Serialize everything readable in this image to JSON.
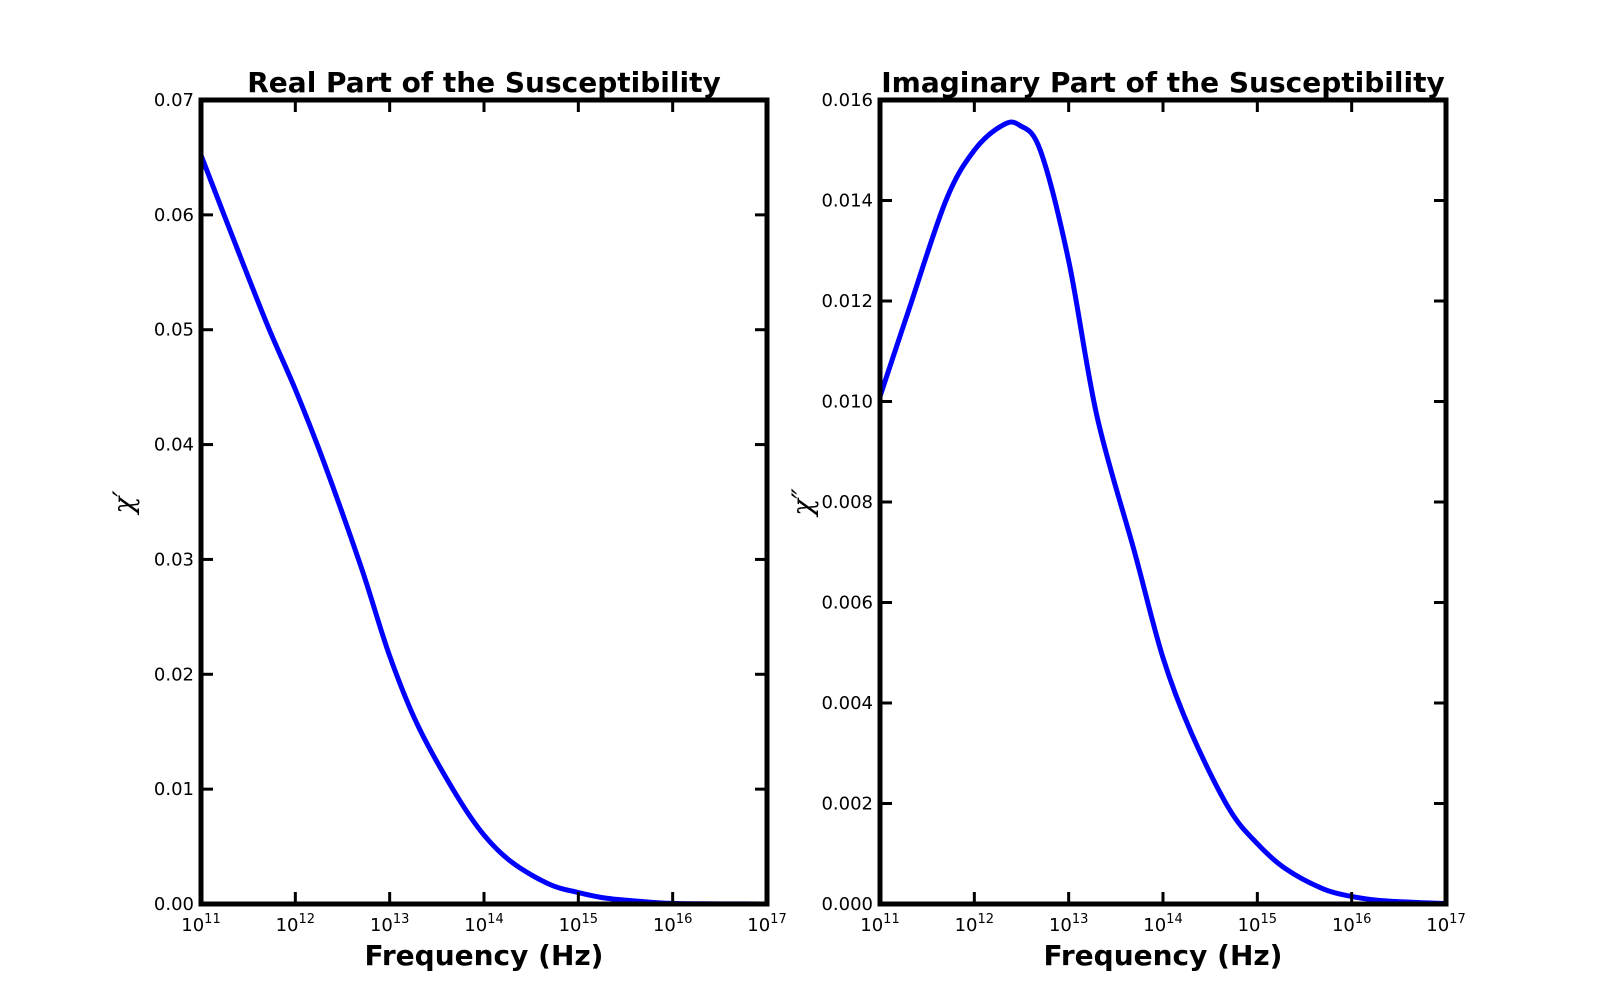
{
  "figure": {
    "background": "#ffffff",
    "line_color": "#0000ff",
    "frame_color": "#000000"
  },
  "chart_data": [
    {
      "type": "line",
      "title": "Real Part of the Susceptibility",
      "xlabel": "Frequency (Hz)",
      "ylabel": "χ′",
      "xscale": "log",
      "xlim": [
        100000000000.0,
        1e+17
      ],
      "ylim": [
        0,
        0.07
      ],
      "xticks": [
        {
          "value": 100000000000.0,
          "base": "10",
          "exp": "11"
        },
        {
          "value": 1000000000000.0,
          "base": "10",
          "exp": "12"
        },
        {
          "value": 10000000000000.0,
          "base": "10",
          "exp": "13"
        },
        {
          "value": 100000000000000.0,
          "base": "10",
          "exp": "14"
        },
        {
          "value": 1000000000000000.0,
          "base": "10",
          "exp": "15"
        },
        {
          "value": 1e+16,
          "base": "10",
          "exp": "16"
        },
        {
          "value": 1e+17,
          "base": "10",
          "exp": "17"
        }
      ],
      "yticks": [
        {
          "value": 0.0,
          "label": "0.00"
        },
        {
          "value": 0.01,
          "label": "0.01"
        },
        {
          "value": 0.02,
          "label": "0.02"
        },
        {
          "value": 0.03,
          "label": "0.03"
        },
        {
          "value": 0.04,
          "label": "0.04"
        },
        {
          "value": 0.05,
          "label": "0.05"
        },
        {
          "value": 0.06,
          "label": "0.06"
        },
        {
          "value": 0.07,
          "label": "0.07"
        }
      ],
      "grid": false,
      "series": [
        {
          "color": "#0000ff",
          "x": [
            100000000000.0,
            200000000000.0,
            500000000000.0,
            1000000000000.0,
            2000000000000.0,
            5000000000000.0,
            10000000000000.0,
            20000000000000.0,
            50000000000000.0,
            100000000000000.0,
            200000000000000.0,
            500000000000000.0,
            1000000000000000.0,
            2000000000000000.0,
            5000000000000000.0,
            1e+16,
            2e+16,
            5e+16,
            1e+17
          ],
          "y": [
            0.0652,
            0.0588,
            0.0505,
            0.0448,
            0.0385,
            0.0293,
            0.0216,
            0.0155,
            0.0096,
            0.006,
            0.0036,
            0.0017,
            0.001,
            0.0005,
            0.0002,
            5e-05,
            2e-05,
            1e-05,
            0.0
          ]
        }
      ]
    },
    {
      "type": "line",
      "title": "Imaginary Part of the Susceptibility",
      "xlabel": "Frequency (Hz)",
      "ylabel": "χ″",
      "xscale": "log",
      "xlim": [
        100000000000.0,
        1e+17
      ],
      "ylim": [
        0,
        0.016
      ],
      "xticks": [
        {
          "value": 100000000000.0,
          "base": "10",
          "exp": "11"
        },
        {
          "value": 1000000000000.0,
          "base": "10",
          "exp": "12"
        },
        {
          "value": 10000000000000.0,
          "base": "10",
          "exp": "13"
        },
        {
          "value": 100000000000000.0,
          "base": "10",
          "exp": "14"
        },
        {
          "value": 1000000000000000.0,
          "base": "10",
          "exp": "15"
        },
        {
          "value": 1e+16,
          "base": "10",
          "exp": "16"
        },
        {
          "value": 1e+17,
          "base": "10",
          "exp": "17"
        }
      ],
      "yticks": [
        {
          "value": 0.0,
          "label": "0.000"
        },
        {
          "value": 0.002,
          "label": "0.002"
        },
        {
          "value": 0.004,
          "label": "0.004"
        },
        {
          "value": 0.006,
          "label": "0.006"
        },
        {
          "value": 0.008,
          "label": "0.008"
        },
        {
          "value": 0.01,
          "label": "0.010"
        },
        {
          "value": 0.012,
          "label": "0.012"
        },
        {
          "value": 0.014,
          "label": "0.014"
        },
        {
          "value": 0.016,
          "label": "0.016"
        }
      ],
      "grid": false,
      "series": [
        {
          "color": "#0000ff",
          "x": [
            100000000000.0,
            200000000000.0,
            500000000000.0,
            1000000000000.0,
            2000000000000.0,
            3000000000000.0,
            5000000000000.0,
            10000000000000.0,
            20000000000000.0,
            50000000000000.0,
            100000000000000.0,
            200000000000000.0,
            500000000000000.0,
            1000000000000000.0,
            2000000000000000.0,
            5000000000000000.0,
            1e+16,
            2e+16,
            5e+16,
            1e+17
          ],
          "y": [
            0.0101,
            0.0118,
            0.014,
            0.015,
            0.0155,
            0.0155,
            0.015,
            0.0128,
            0.0097,
            0.007,
            0.0049,
            0.0034,
            0.0019,
            0.0012,
            0.0007,
            0.0003,
            0.00015,
            7e-05,
            3e-05,
            1e-05
          ]
        }
      ]
    }
  ]
}
